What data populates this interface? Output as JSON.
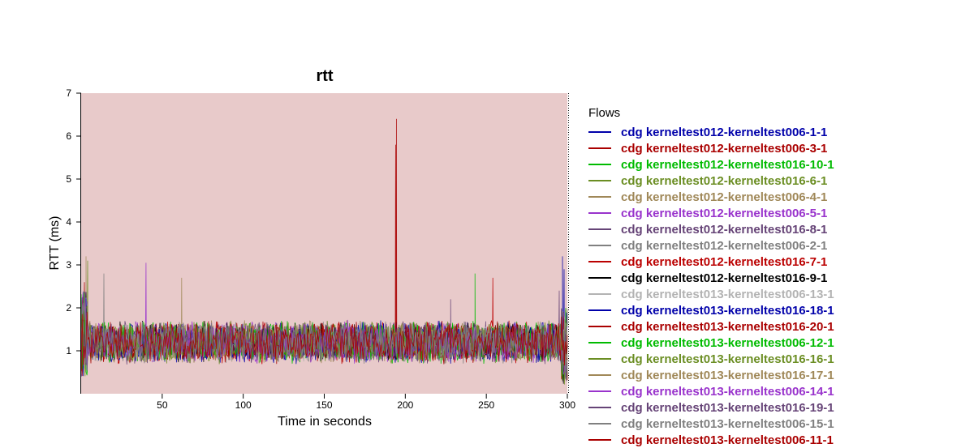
{
  "chart_data": {
    "type": "line",
    "title": "rtt",
    "xlabel": "Time in seconds",
    "ylabel": "RTT (ms)",
    "xlim": [
      0,
      300
    ],
    "ylim": [
      0,
      7
    ],
    "x_ticks": [
      "50",
      "100",
      "150",
      "200",
      "250",
      "300"
    ],
    "x_tick_values": [
      50,
      100,
      150,
      200,
      250,
      300
    ],
    "y_ticks": [
      "1",
      "2",
      "3",
      "4",
      "5",
      "6",
      "7"
    ],
    "y_tick_values": [
      1,
      2,
      3,
      4,
      5,
      6,
      7
    ],
    "plot_background": "#e8caca",
    "legend_title": "Flows",
    "legend_position": "right",
    "baseline_rtt_range": [
      0.8,
      1.6
    ],
    "series": [
      {
        "name": "cdg kerneltest012-kerneltest006-1-1",
        "color": "#0000aa",
        "spikes": [
          [
            298,
            2.9
          ]
        ]
      },
      {
        "name": "cdg kerneltest012-kerneltest006-3-1",
        "color": "#aa0000",
        "spikes": [
          [
            2,
            2.6
          ],
          [
            194.5,
            6.4
          ],
          [
            194,
            5.8
          ]
        ]
      },
      {
        "name": "cdg kerneltest012-kerneltest016-10-1",
        "color": "#00bb00",
        "spikes": [
          [
            243,
            2.8
          ]
        ]
      },
      {
        "name": "cdg kerneltest012-kerneltest016-6-1",
        "color": "#6b8e23",
        "spikes": [
          [
            4,
            3.1
          ]
        ]
      },
      {
        "name": "cdg kerneltest012-kerneltest006-4-1",
        "color": "#a08858",
        "spikes": [
          [
            3,
            3.2
          ],
          [
            62,
            2.7
          ]
        ]
      },
      {
        "name": "cdg kerneltest012-kerneltest006-5-1",
        "color": "#9933cc",
        "spikes": [
          [
            40,
            3.05
          ]
        ]
      },
      {
        "name": "cdg kerneltest012-kerneltest016-8-1",
        "color": "#664477",
        "spikes": [
          [
            295,
            2.4
          ]
        ]
      },
      {
        "name": "cdg kerneltest012-kerneltest006-2-1",
        "color": "#808080",
        "spikes": [
          [
            14,
            2.8
          ]
        ]
      },
      {
        "name": "cdg kerneltest012-kerneltest016-7-1",
        "color": "#bb0000",
        "spikes": [
          [
            254,
            2.7
          ]
        ]
      },
      {
        "name": "cdg kerneltest012-kerneltest016-9-1",
        "color": "#000000",
        "spikes": []
      },
      {
        "name": "cdg kerneltest013-kerneltest006-13-1",
        "color": "#b3b3b3",
        "spikes": []
      },
      {
        "name": "cdg kerneltest013-kerneltest016-18-1",
        "color": "#0000aa",
        "spikes": [
          [
            297,
            3.2
          ]
        ]
      },
      {
        "name": "cdg kerneltest013-kerneltest016-20-1",
        "color": "#aa0000",
        "spikes": []
      },
      {
        "name": "cdg kerneltest013-kerneltest006-12-1",
        "color": "#00bb00",
        "spikes": [
          [
            299,
            2.0
          ]
        ]
      },
      {
        "name": "cdg kerneltest013-kerneltest016-16-1",
        "color": "#6b8e23",
        "spikes": []
      },
      {
        "name": "cdg kerneltest013-kerneltest016-17-1",
        "color": "#a08858",
        "spikes": []
      },
      {
        "name": "cdg kerneltest013-kerneltest006-14-1",
        "color": "#9933cc",
        "spikes": []
      },
      {
        "name": "cdg kerneltest013-kerneltest016-19-1",
        "color": "#664477",
        "spikes": [
          [
            228,
            2.2
          ]
        ]
      },
      {
        "name": "cdg kerneltest013-kerneltest006-15-1",
        "color": "#808080",
        "spikes": []
      },
      {
        "name": "cdg kerneltest013-kerneltest006-11-1",
        "color": "#aa0000",
        "spikes": []
      }
    ]
  }
}
